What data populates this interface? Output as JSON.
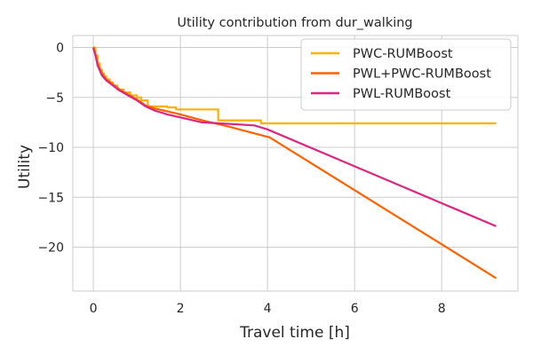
{
  "chart_data": {
    "type": "line",
    "title": "Utility contribution from dur_walking",
    "xlabel": "Travel time [h]",
    "ylabel": "Utility",
    "xlim": [
      -0.47,
      9.75
    ],
    "ylim": [
      -24.4,
      1.2
    ],
    "xticks": [
      0,
      2,
      4,
      6,
      8
    ],
    "yticks": [
      0,
      -5,
      -10,
      -15,
      -20
    ],
    "xtick_labels": [
      "0",
      "2",
      "4",
      "6",
      "8"
    ],
    "ytick_labels": [
      "0",
      "−5",
      "−10",
      "−15",
      "−20"
    ],
    "grid": true,
    "legend_position": "top-right",
    "series": [
      {
        "name": "PWC-RUMBoost",
        "color": "#FFB000",
        "step": true,
        "x": [
          0.0,
          0.05,
          0.1,
          0.15,
          0.2,
          0.25,
          0.3,
          0.38,
          0.45,
          0.55,
          0.7,
          0.85,
          1.0,
          1.1,
          1.25,
          1.7,
          1.9,
          2.87,
          3.85,
          9.25
        ],
        "y": [
          0.0,
          -0.8,
          -1.6,
          -2.2,
          -2.6,
          -2.9,
          -3.2,
          -3.5,
          -3.8,
          -4.2,
          -4.5,
          -4.8,
          -5.0,
          -5.3,
          -5.9,
          -6.0,
          -6.2,
          -7.3,
          -7.6,
          -7.6
        ]
      },
      {
        "name": "PWL+PWC-RUMBoost",
        "color": "#FE6100",
        "step": false,
        "x": [
          0.0,
          0.05,
          0.1,
          0.2,
          0.3,
          0.45,
          0.6,
          0.8,
          1.0,
          1.2,
          1.4,
          1.7,
          2.0,
          2.5,
          3.0,
          4.05,
          9.25
        ],
        "y": [
          0.0,
          -0.7,
          -1.6,
          -2.6,
          -3.2,
          -3.7,
          -4.2,
          -4.7,
          -5.2,
          -5.8,
          -6.1,
          -6.4,
          -6.7,
          -7.3,
          -7.8,
          -9.0,
          -23.1
        ]
      },
      {
        "name": "PWL-RUMBoost",
        "color": "#DC267F",
        "step": false,
        "x": [
          0.0,
          0.05,
          0.1,
          0.2,
          0.3,
          0.45,
          0.6,
          0.8,
          1.0,
          1.2,
          1.4,
          1.7,
          2.0,
          2.5,
          2.9,
          3.7,
          4.0,
          9.25
        ],
        "y": [
          0.0,
          -0.8,
          -1.8,
          -2.8,
          -3.3,
          -3.8,
          -4.3,
          -4.8,
          -5.3,
          -5.9,
          -6.3,
          -6.7,
          -7.0,
          -7.5,
          -7.6,
          -7.8,
          -8.2,
          -17.9
        ]
      }
    ]
  }
}
